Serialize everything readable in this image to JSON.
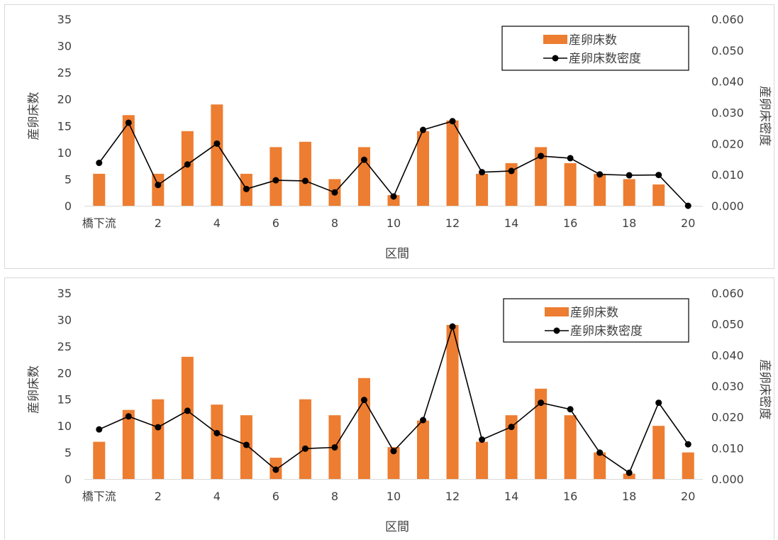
{
  "chart_data": [
    {
      "type": "bar",
      "categories": [
        "橋下流",
        "1",
        "2",
        "3",
        "4",
        "5",
        "6",
        "7",
        "8",
        "9",
        "10",
        "11",
        "12",
        "13",
        "14",
        "15",
        "16",
        "17",
        "18",
        "19",
        "20"
      ],
      "tick_labels": [
        "橋下流",
        "2",
        "4",
        "6",
        "8",
        "10",
        "12",
        "14",
        "16",
        "18",
        "20"
      ],
      "xlabel": "区間",
      "ylabel": "産卵床数",
      "y2label": "産卵床密度",
      "ylim": [
        0,
        35
      ],
      "yticks": [
        "0",
        "5",
        "10",
        "15",
        "20",
        "25",
        "30",
        "35"
      ],
      "y2lim": [
        0,
        0.06
      ],
      "y2ticks": [
        "0.000",
        "0.010",
        "0.020",
        "0.030",
        "0.040",
        "0.050",
        "0.060"
      ],
      "legend": "top-right",
      "series": [
        {
          "name": "産卵床数",
          "type": "bar",
          "axis": "left",
          "color": "#ed7d31",
          "values": [
            6,
            17,
            6,
            14,
            19,
            6,
            11,
            12,
            5,
            11,
            2,
            14,
            16,
            6,
            8,
            11,
            8,
            6,
            5,
            4,
            0
          ]
        },
        {
          "name": "産卵床数密度",
          "type": "line",
          "axis": "right",
          "color": "#000000",
          "values": [
            0.0138,
            0.0267,
            0.0067,
            0.0133,
            0.02,
            0.0054,
            0.0082,
            0.008,
            0.0043,
            0.0148,
            0.003,
            0.0244,
            0.0272,
            0.0108,
            0.0112,
            0.016,
            0.0153,
            0.0101,
            0.0098,
            0.0099,
            0.0
          ]
        }
      ]
    },
    {
      "type": "bar",
      "categories": [
        "橋下流",
        "1",
        "2",
        "3",
        "4",
        "5",
        "6",
        "7",
        "8",
        "9",
        "10",
        "11",
        "12",
        "13",
        "14",
        "15",
        "16",
        "17",
        "18",
        "19",
        "20"
      ],
      "tick_labels": [
        "橋下流",
        "2",
        "4",
        "6",
        "8",
        "10",
        "12",
        "14",
        "16",
        "18",
        "20"
      ],
      "xlabel": "区間",
      "ylabel": "産卵床数",
      "y2label": "産卵床密度",
      "ylim": [
        0,
        35
      ],
      "yticks": [
        "0",
        "5",
        "10",
        "15",
        "20",
        "25",
        "30",
        "35"
      ],
      "y2lim": [
        0,
        0.06
      ],
      "y2ticks": [
        "0.000",
        "0.010",
        "0.020",
        "0.030",
        "0.040",
        "0.050",
        "0.060"
      ],
      "legend": "top-right",
      "series": [
        {
          "name": "産卵床数",
          "type": "bar",
          "axis": "left",
          "color": "#ed7d31",
          "values": [
            7,
            13,
            15,
            23,
            14,
            12,
            4,
            15,
            12,
            19,
            6,
            11,
            29,
            7,
            12,
            17,
            12,
            5,
            1,
            10,
            5
          ]
        },
        {
          "name": "産卵床数密度",
          "type": "line",
          "axis": "right",
          "color": "#000000",
          "values": [
            0.016,
            0.0202,
            0.0167,
            0.022,
            0.0148,
            0.011,
            0.003,
            0.0098,
            0.0102,
            0.0255,
            0.009,
            0.019,
            0.0492,
            0.0127,
            0.0168,
            0.0246,
            0.0225,
            0.0085,
            0.002,
            0.0246,
            0.0112
          ]
        }
      ]
    }
  ]
}
